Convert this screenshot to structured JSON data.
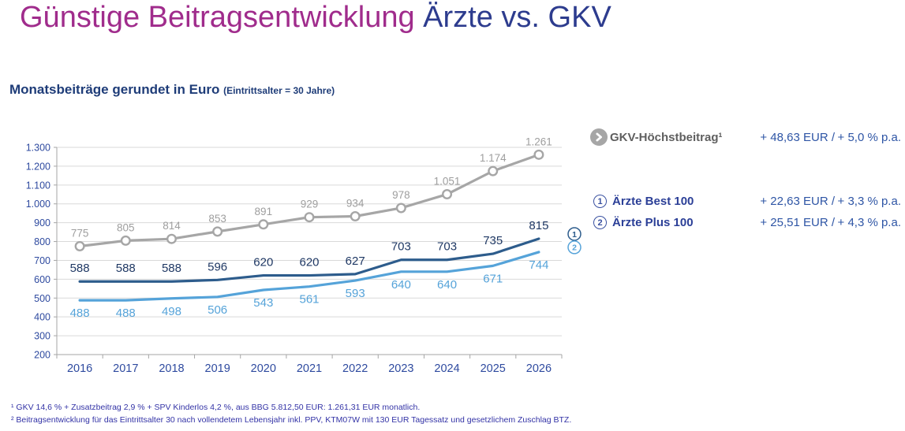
{
  "title": {
    "part1": "Günstige Beitragsentwicklung ",
    "part2": "Ärzte vs. GKV"
  },
  "subtitle": {
    "main": "Monatsbeiträge gerundet in Euro ",
    "note": "(Eintrittsalter = 30 Jahre)"
  },
  "chart_data": {
    "type": "line",
    "title": "Monatsbeiträge gerundet in Euro (Eintrittsalter = 30 Jahre)",
    "categories": [
      "2016",
      "2017",
      "2018",
      "2019",
      "2020",
      "2021",
      "2022",
      "2023",
      "2024",
      "2025",
      "2026"
    ],
    "series": [
      {
        "name": "GKV-Höchstbeitrag",
        "values": [
          775,
          805,
          814,
          853,
          891,
          929,
          934,
          978,
          1051,
          1174,
          1261
        ],
        "color": "#a6a6a6",
        "label_color": "#9e9e9e",
        "label_position": "above",
        "label_size": 13.5,
        "marker": true,
        "end_badge": ""
      },
      {
        "name": "Ärzte Best 100",
        "values": [
          588,
          588,
          588,
          596,
          620,
          620,
          627,
          703,
          703,
          735,
          815
        ],
        "color": "#2d5c8c",
        "label_color": "#1f3864",
        "label_position": "above",
        "label_size": 15,
        "marker": false,
        "end_badge": "1"
      },
      {
        "name": "Ärzte Plus 100",
        "values": [
          488,
          488,
          498,
          506,
          543,
          561,
          593,
          640,
          640,
          671,
          744
        ],
        "color": "#55a3d9",
        "label_color": "#55a3d9",
        "label_position": "below",
        "label_size": 15,
        "marker": false,
        "end_badge": "2"
      }
    ],
    "ylim": [
      200,
      1300
    ],
    "ytick_step": 100,
    "grid": true,
    "legend_position": "right",
    "number_format": "de",
    "badge_colors": {
      "1": "#2d5c8c",
      "2": "#55a3d9"
    }
  },
  "legend": {
    "gkv": {
      "label": "GKV-Höchstbeitrag¹",
      "eur": "+ 48,63 EUR /",
      "pct": "+ 5,0 % p.a."
    },
    "rows": [
      {
        "badge": "1",
        "label": "Ärzte Best 100",
        "eur": "+ 22,63 EUR /",
        "pct": "+ 3,3 % p.a."
      },
      {
        "badge": "2",
        "label": "Ärzte Plus 100",
        "eur": "+ 25,51 EUR /",
        "pct": "+ 4,3 % p.a."
      }
    ]
  },
  "footnotes": [
    "¹  GKV 14,6 % + Zusatzbeitrag 2,9 % + SPV Kinderlos 4,2 %, aus BBG 5.812,50 EUR: 1.261,31 EUR monatlich.",
    "²  Beitragsentwicklung für das Eintrittsalter 30 nach vollendetem Lebensjahr inkl. PPV, KTM07W mit 130 EUR Tagessatz und gesetzlichem Zuschlag BTZ."
  ],
  "colors": {
    "title_magenta": "#a02c8c",
    "title_navy": "#2d3c8e",
    "subtitle_navy": "#1e3c78",
    "axis_label": "#2e4a9f",
    "axis_line": "#a6a6a6",
    "gridline": "#d9d9d9",
    "legend_value_blue": "#2e55a5",
    "footnote_blue": "#3333a6"
  }
}
